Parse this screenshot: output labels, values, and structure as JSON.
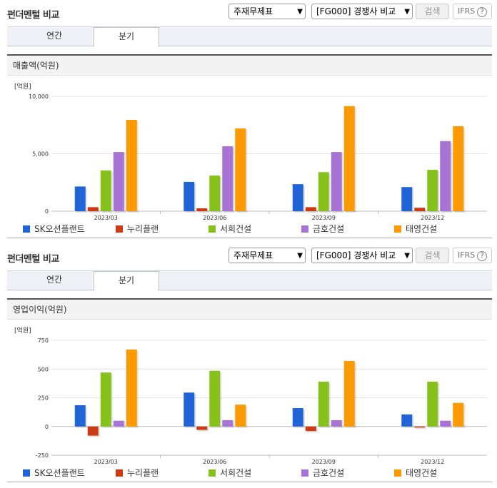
{
  "sections": [
    {
      "title": "펀더멘털 비교",
      "select_statement": "주재무제표",
      "select_peer": "[FG000] 경쟁사 비교",
      "search_label": "검색",
      "ifrs_label": "IFRS",
      "help_symbol": "?",
      "tabs": [
        {
          "label": "연간"
        },
        {
          "label": "분기"
        }
      ],
      "active_tab": "분기",
      "chart_title": "매출액(억원)",
      "chart_data": {
        "type": "bar",
        "title": "매출액(억원)",
        "unit": "[억원]",
        "categories": [
          "2023/03",
          "2023/06",
          "2023/09",
          "2023/12"
        ],
        "ylim": [
          0,
          10000
        ],
        "yticks": [
          "0",
          "5,000",
          "10,000"
        ],
        "ytick_values": [
          0,
          5000,
          10000
        ],
        "series": [
          {
            "name": "SK오션플랜트",
            "color": "#2164d8",
            "values": [
              2150,
              2550,
              2350,
              2100
            ]
          },
          {
            "name": "누리플랜",
            "color": "#cc3b14",
            "values": [
              350,
              250,
              350,
              300
            ]
          },
          {
            "name": "서희건설",
            "color": "#87c21c",
            "values": [
              3550,
              3100,
              3400,
              3600
            ]
          },
          {
            "name": "금호건설",
            "color": "#a774d6",
            "values": [
              5150,
              5650,
              5150,
              6100
            ]
          },
          {
            "name": "태영건설",
            "color": "#ff9900",
            "values": [
              7950,
              7200,
              9150,
              7400
            ]
          }
        ]
      }
    },
    {
      "title": "펀더멘털 비교",
      "select_statement": "주재무제표",
      "select_peer": "[FG000] 경쟁사 비교",
      "search_label": "검색",
      "ifrs_label": "IFRS",
      "help_symbol": "?",
      "tabs": [
        {
          "label": "연간"
        },
        {
          "label": "분기"
        }
      ],
      "active_tab": "분기",
      "chart_title": "영업이익(억원)",
      "chart_data": {
        "type": "bar",
        "title": "영업이익(억원)",
        "unit": "[억원]",
        "categories": [
          "2023/03",
          "2023/06",
          "2023/09",
          "2023/12"
        ],
        "ylim": [
          -250,
          750
        ],
        "yticks": [
          "-250",
          "0",
          "250",
          "500",
          "750"
        ],
        "ytick_values": [
          -250,
          0,
          250,
          500,
          750
        ],
        "series": [
          {
            "name": "SK오션플랜트",
            "color": "#2164d8",
            "values": [
              185,
              295,
              160,
              105
            ]
          },
          {
            "name": "누리플랜",
            "color": "#cc3b14",
            "values": [
              -80,
              -30,
              -40,
              -10
            ]
          },
          {
            "name": "서희건설",
            "color": "#87c21c",
            "values": [
              470,
              485,
              390,
              390
            ]
          },
          {
            "name": "금호건설",
            "color": "#a774d6",
            "values": [
              50,
              55,
              55,
              50
            ]
          },
          {
            "name": "태영건설",
            "color": "#ff9900",
            "values": [
              670,
              190,
              570,
              205
            ]
          }
        ]
      }
    }
  ]
}
